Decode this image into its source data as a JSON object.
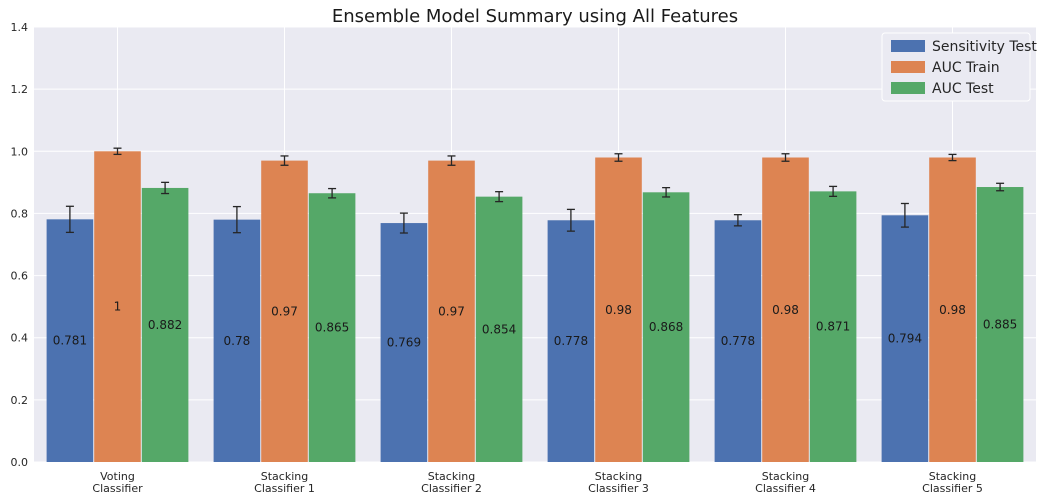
{
  "chart_data": {
    "type": "bar",
    "title": "Ensemble Model Summary using All Features",
    "xlabel": "",
    "ylabel": "",
    "ylim": [
      0,
      1.4
    ],
    "yticks": [
      "0.0",
      "0.2",
      "0.4",
      "0.6",
      "0.8",
      "1.0",
      "1.2",
      "1.4"
    ],
    "grid": true,
    "legend_position": "top-right",
    "categories": [
      [
        "Voting",
        "Classifier"
      ],
      [
        "Stacking",
        "Classifier 1"
      ],
      [
        "Stacking",
        "Classifier 2"
      ],
      [
        "Stacking",
        "Classifier 3"
      ],
      [
        "Stacking",
        "Classifier 4"
      ],
      [
        "Stacking",
        "Classifier 5"
      ]
    ],
    "series": [
      {
        "name": "Sensitivity Test",
        "color": "#4c72b0",
        "values": [
          0.781,
          0.78,
          0.769,
          0.778,
          0.778,
          0.794
        ],
        "labels": [
          "0.781",
          "0.78",
          "0.769",
          "0.778",
          "0.778",
          "0.794"
        ],
        "errors": [
          0.042,
          0.042,
          0.032,
          0.035,
          0.018,
          0.038
        ]
      },
      {
        "name": "AUC Train",
        "color": "#dd8452",
        "values": [
          1.0,
          0.97,
          0.97,
          0.98,
          0.98,
          0.98
        ],
        "labels": [
          "1",
          "0.97",
          "0.97",
          "0.98",
          "0.98",
          "0.98"
        ],
        "errors": [
          0.01,
          0.015,
          0.015,
          0.012,
          0.012,
          0.01
        ]
      },
      {
        "name": "AUC Test",
        "color": "#55a868",
        "values": [
          0.882,
          0.865,
          0.854,
          0.868,
          0.871,
          0.885
        ],
        "labels": [
          "0.882",
          "0.865",
          "0.854",
          "0.868",
          "0.871",
          "0.885"
        ],
        "errors": [
          0.018,
          0.015,
          0.016,
          0.015,
          0.016,
          0.012
        ]
      }
    ]
  }
}
